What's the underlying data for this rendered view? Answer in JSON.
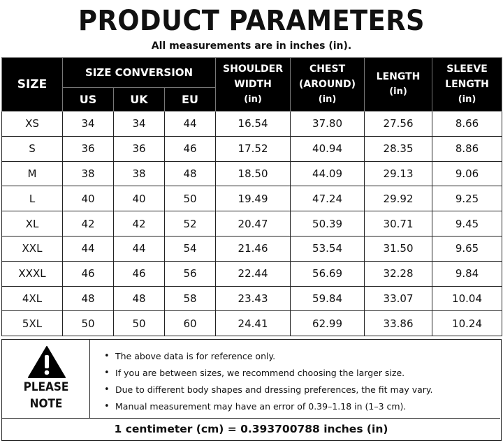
{
  "header": {
    "title": "PRODUCT PARAMETERS",
    "subtitle": "All measurements are in inches (in)."
  },
  "table": {
    "size_header": "SIZE",
    "conversion_header": "SIZE CONVERSION",
    "conversion_columns": [
      "US",
      "UK",
      "EU"
    ],
    "measure_columns": [
      {
        "line1": "SHOULDER",
        "line2": "WIDTH",
        "unit": "(in)"
      },
      {
        "line1": "CHEST",
        "line2": "(AROUND)",
        "unit": "(in)"
      },
      {
        "line1": "LENGTH",
        "line2": "",
        "unit": "(in)"
      },
      {
        "line1": "SLEEVE",
        "line2": "LENGTH",
        "unit": "(in)"
      }
    ],
    "rows": [
      [
        "XS",
        "34",
        "34",
        "44",
        "16.54",
        "37.80",
        "27.56",
        "8.66"
      ],
      [
        "S",
        "36",
        "36",
        "46",
        "17.52",
        "40.94",
        "28.35",
        "8.86"
      ],
      [
        "M",
        "38",
        "38",
        "48",
        "18.50",
        "44.09",
        "29.13",
        "9.06"
      ],
      [
        "L",
        "40",
        "40",
        "50",
        "19.49",
        "47.24",
        "29.92",
        "9.25"
      ],
      [
        "XL",
        "42",
        "42",
        "52",
        "20.47",
        "50.39",
        "30.71",
        "9.45"
      ],
      [
        "XXL",
        "44",
        "44",
        "54",
        "21.46",
        "53.54",
        "31.50",
        "9.65"
      ],
      [
        "XXXL",
        "46",
        "46",
        "56",
        "22.44",
        "56.69",
        "32.28",
        "9.84"
      ],
      [
        "4XL",
        "48",
        "48",
        "58",
        "23.43",
        "59.84",
        "33.07",
        "10.04"
      ],
      [
        "5XL",
        "50",
        "50",
        "60",
        "24.41",
        "62.99",
        "33.86",
        "10.24"
      ]
    ]
  },
  "note": {
    "icon": "warning-triangle-icon",
    "label_line1": "PLEASE",
    "label_line2": "NOTE",
    "items": [
      "The above data is for reference only.",
      "If you are between sizes, we recommend choosing the larger size.",
      "Due to different body shapes and dressing preferences, the fit may vary.",
      "Manual measurement may have an error of 0.39–1.18 in (1–3 cm)."
    ],
    "conversion": "1 centimeter (cm) = 0.393700788 inches (in)"
  }
}
